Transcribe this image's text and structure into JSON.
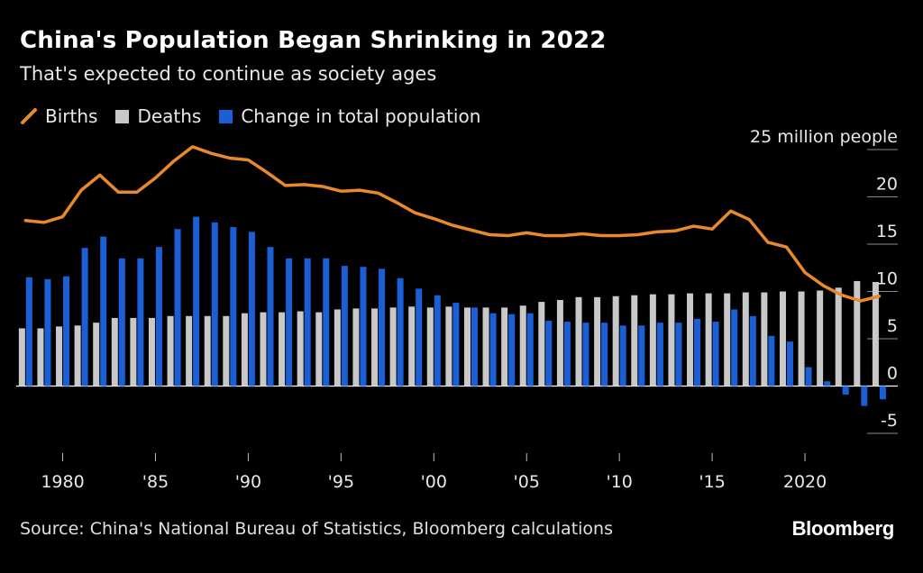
{
  "title": "China's Population Began Shrinking in 2022",
  "subtitle": "That's expected to continue as society ages",
  "legend": [
    {
      "label": "Births",
      "color": "#e8892b",
      "shape": "line"
    },
    {
      "label": "Deaths",
      "color": "#c8c8c8",
      "shape": "square"
    },
    {
      "label": "Change in total population",
      "color": "#1a5fd6",
      "shape": "square"
    }
  ],
  "source": "Source: China's National Bureau of Statistics, Bloomberg calculations",
  "brand": "Bloomberg",
  "chart_data": {
    "type": "bar",
    "unit_label": "25 million people",
    "ylim": [
      -7,
      25
    ],
    "yticks": [
      -5,
      0,
      5,
      10,
      15,
      20
    ],
    "ytick_labels": [
      "-5",
      "0",
      "5",
      "10",
      "15",
      "20"
    ],
    "xlim": [
      1977.4,
      2025
    ],
    "xticks": [
      1980,
      1985,
      1990,
      1995,
      2000,
      2005,
      2010,
      2015,
      2020
    ],
    "xtick_labels": [
      "1980",
      "'85",
      "'90",
      "'95",
      "'00",
      "'05",
      "'10",
      "'15",
      "2020"
    ],
    "x": [
      1978,
      1979,
      1980,
      1981,
      1982,
      1983,
      1984,
      1985,
      1986,
      1987,
      1988,
      1989,
      1990,
      1991,
      1992,
      1993,
      1994,
      1995,
      1996,
      1997,
      1998,
      1999,
      2000,
      2001,
      2002,
      2003,
      2004,
      2005,
      2006,
      2007,
      2008,
      2009,
      2010,
      2011,
      2012,
      2013,
      2014,
      2015,
      2016,
      2017,
      2018,
      2019,
      2020,
      2021,
      2022,
      2023,
      2024
    ],
    "series": [
      {
        "name": "Births",
        "type": "line",
        "color": "#e8892b",
        "values": [
          17.5,
          17.3,
          17.9,
          20.7,
          22.3,
          20.5,
          20.5,
          22.0,
          23.8,
          25.3,
          24.6,
          24.1,
          23.9,
          22.6,
          21.2,
          21.3,
          21.1,
          20.6,
          20.7,
          20.4,
          19.4,
          18.3,
          17.7,
          17.0,
          16.5,
          16.0,
          15.9,
          16.2,
          15.9,
          15.9,
          16.1,
          15.9,
          15.9,
          16.0,
          16.3,
          16.4,
          16.9,
          16.6,
          18.5,
          17.6,
          15.2,
          14.7,
          12.0,
          10.6,
          9.6,
          9.0,
          9.5
        ]
      },
      {
        "name": "Deaths",
        "type": "bar",
        "color": "#c8c8c8",
        "values": [
          6.1,
          6.1,
          6.3,
          6.4,
          6.7,
          7.2,
          7.2,
          7.2,
          7.4,
          7.4,
          7.4,
          7.4,
          7.7,
          7.8,
          7.8,
          7.9,
          7.8,
          8.1,
          8.2,
          8.2,
          8.3,
          8.4,
          8.3,
          8.4,
          8.3,
          8.3,
          8.3,
          8.5,
          8.9,
          9.1,
          9.4,
          9.4,
          9.5,
          9.6,
          9.7,
          9.7,
          9.8,
          9.8,
          9.8,
          9.9,
          9.9,
          10.0,
          10.0,
          10.1,
          10.4,
          11.1,
          11.0
        ]
      },
      {
        "name": "Change in total population",
        "type": "bar",
        "color": "#1a5fd6",
        "values": [
          11.5,
          11.3,
          11.6,
          14.6,
          15.8,
          13.5,
          13.5,
          14.7,
          16.6,
          17.9,
          17.3,
          16.8,
          16.3,
          14.7,
          13.5,
          13.5,
          13.5,
          12.7,
          12.6,
          12.4,
          11.4,
          10.3,
          9.6,
          8.8,
          8.3,
          7.7,
          7.6,
          7.7,
          6.9,
          6.8,
          6.7,
          6.7,
          6.4,
          6.4,
          6.7,
          6.7,
          7.1,
          6.8,
          8.1,
          7.4,
          5.3,
          4.7,
          2.0,
          0.5,
          -0.9,
          -2.1,
          -1.4
        ]
      }
    ]
  }
}
